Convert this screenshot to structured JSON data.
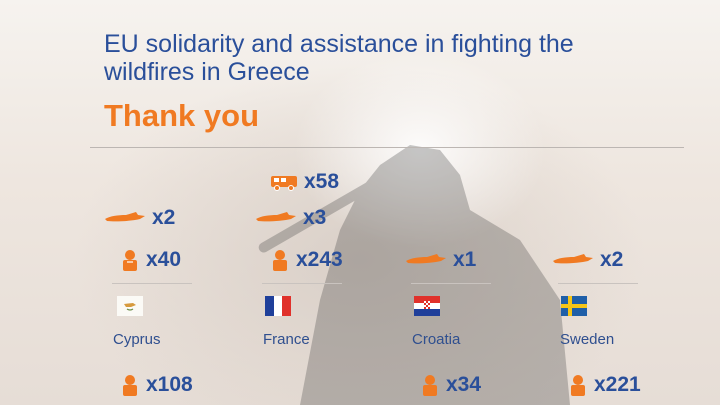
{
  "header": {
    "title": "EU solidarity and assistance in fighting the wildfires in Greece",
    "thank_you": "Thank you"
  },
  "colors": {
    "accent": "#f07a22",
    "text_blue": "#2a4f9a"
  },
  "countries": [
    {
      "name": "Cyprus",
      "planes": "x2",
      "firefighters": "x40",
      "bottom_firefighters": "x108",
      "flag_icon": "cyprus-flag-icon"
    },
    {
      "name": "France",
      "vehicles": "x58",
      "planes": "x3",
      "firefighters": "x243",
      "flag_icon": "france-flag-icon"
    },
    {
      "name": "Croatia",
      "planes": "x1",
      "bottom_firefighters": "x34",
      "flag_icon": "croatia-flag-icon"
    },
    {
      "name": "Sweden",
      "planes": "x2",
      "bottom_firefighters": "x221",
      "flag_icon": "sweden-flag-icon"
    }
  ]
}
